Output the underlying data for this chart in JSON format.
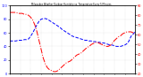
{
  "title": "Milwaukee Weather Outdoor Humidity vs. Temperature Every 5 Minutes",
  "background_color": "#ffffff",
  "plot_bg_color": "#ffffff",
  "grid_color": "#cccccc",
  "ylim_left": [
    0,
    100
  ],
  "ylim_right": [
    20,
    90
  ],
  "red_line": {
    "color": "red",
    "style": "-.",
    "linewidth": 0.7,
    "y": [
      83,
      83,
      83,
      83,
      82,
      82,
      82,
      81,
      81,
      80,
      78,
      75,
      70,
      63,
      54,
      45,
      36,
      30,
      26,
      24,
      23,
      22,
      22,
      23,
      25,
      27,
      29,
      31,
      32,
      33,
      35,
      37,
      39,
      40,
      41,
      43,
      45,
      47,
      48,
      50,
      51,
      52,
      52,
      51,
      50,
      49,
      48,
      48,
      49,
      51,
      54,
      56,
      58,
      59,
      61,
      62,
      63,
      63,
      63,
      62,
      61
    ]
  },
  "blue_line": {
    "color": "blue",
    "style": "--",
    "linewidth": 0.7,
    "y": [
      48,
      48,
      48,
      48,
      49,
      49,
      49,
      50,
      50,
      51,
      55,
      60,
      66,
      72,
      77,
      80,
      81,
      81,
      80,
      78,
      76,
      74,
      72,
      70,
      68,
      65,
      63,
      61,
      59,
      57,
      55,
      54,
      53,
      52,
      51,
      50,
      49,
      49,
      48,
      48,
      47,
      47,
      46,
      46,
      45,
      45,
      44,
      43,
      42,
      42,
      41,
      40,
      40,
      40,
      41,
      42,
      44,
      48,
      55,
      58,
      62
    ]
  },
  "n_points": 61,
  "x_tick_every": 5
}
